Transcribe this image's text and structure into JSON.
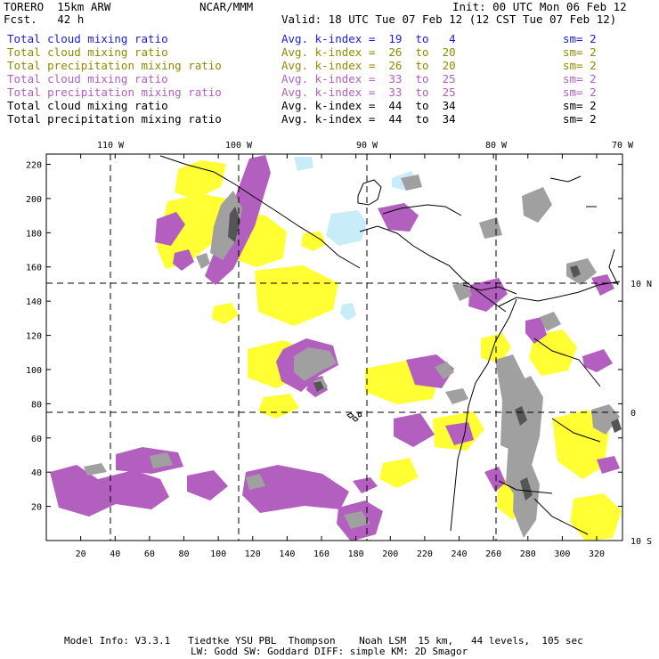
{
  "header": {
    "model": "TORERO  15km ARW",
    "source": "NCAR/MMM",
    "init": "Init: 00 UTC Mon 06 Feb 12",
    "fcst": "Fcst.   42 h",
    "valid": "Valid: 18 UTC Tue 07 Feb 12 (12 CST Tue 07 Feb 12)"
  },
  "legend": [
    {
      "field": "Total cloud mixing ratio",
      "kindex": "Avg. k-index =  19  to   4",
      "sm": "sm= 2",
      "color": "#1a1ae6"
    },
    {
      "field": "Total cloud mixing ratio",
      "kindex": "Avg. k-index =  26  to  20",
      "sm": "sm= 2",
      "color": "#8c8c00"
    },
    {
      "field": "Total precipitation mixing ratio",
      "kindex": "Avg. k-index =  26  to  20",
      "sm": "sm= 2",
      "color": "#8c8c00"
    },
    {
      "field": "Total cloud mixing ratio",
      "kindex": "Avg. k-index =  33  to  25",
      "sm": "sm= 2",
      "color": "#b35fc0"
    },
    {
      "field": "Total precipitation mixing ratio",
      "kindex": "Avg. k-index =  33  to  25",
      "sm": "sm= 2",
      "color": "#b35fc0"
    },
    {
      "field": "Total cloud mixing ratio",
      "kindex": "Avg. k-index =  44  to  34",
      "sm": "sm= 2",
      "color": "#000000"
    },
    {
      "field": "Total precipitation mixing ratio",
      "kindex": "Avg. k-index =  44  to  34",
      "sm": "sm= 2",
      "color": "#000000"
    }
  ],
  "map": {
    "x_ticks": [
      "20",
      "40",
      "60",
      "80",
      "100",
      "120",
      "140",
      "160",
      "180",
      "200",
      "220",
      "240",
      "260",
      "280",
      "300",
      "320"
    ],
    "y_ticks": [
      "20",
      "40",
      "60",
      "80",
      "100",
      "120",
      "140",
      "160",
      "180",
      "200",
      "220"
    ],
    "lon_labels": [
      "110 W",
      "100 W",
      "90 W",
      "80 W",
      "70 W"
    ],
    "lat_labels": [
      "10 N",
      "0",
      "10 S"
    ],
    "colors": {
      "yellow": "#ffff33",
      "purple": "#b35fc0",
      "gray": "#a0a0a0",
      "darkgray": "#555555",
      "cyan": "#c8ecf8"
    }
  },
  "footer": {
    "line1": "Model Info: V3.3.1   Tiedtke YSU PBL  Thompson    Noah LSM  15 km,   44 levels,  105 sec",
    "line2": "LW: Godd SW: Goddard DIFF: simple KM: 2D Smagor"
  }
}
